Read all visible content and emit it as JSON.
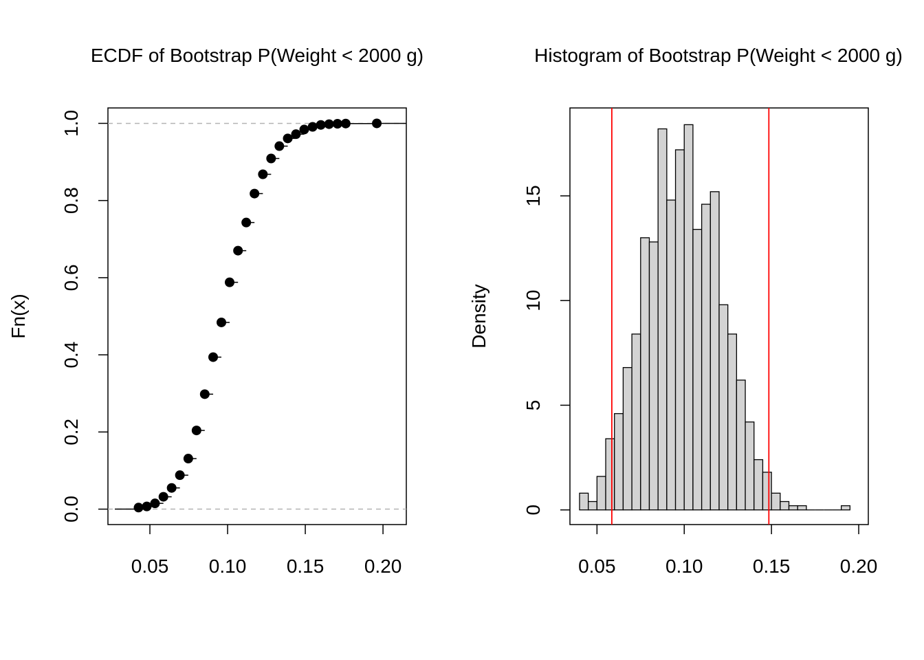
{
  "chart_data": [
    {
      "type": "line",
      "subtype": "ecdf",
      "title": "ECDF of Bootstrap P(Weight < 2000 g)",
      "xlabel": "",
      "ylabel": "Fn(x)",
      "xlim": [
        0.023,
        0.215
      ],
      "ylim": [
        -0.04,
        1.04
      ],
      "xticks": [
        "0.05",
        "0.10",
        "0.15",
        "0.20"
      ],
      "xtick_values": [
        0.05,
        0.1,
        0.15,
        0.2
      ],
      "yticks": [
        "0.0",
        "0.2",
        "0.4",
        "0.6",
        "0.8",
        "1.0"
      ],
      "ytick_values": [
        0.0,
        0.2,
        0.4,
        0.6,
        0.8,
        1.0
      ],
      "reference_lines": [
        0,
        1
      ],
      "points": [
        {
          "x": 0.0427,
          "y": 0.004
        },
        {
          "x": 0.048,
          "y": 0.007
        },
        {
          "x": 0.0533,
          "y": 0.015
        },
        {
          "x": 0.0587,
          "y": 0.032
        },
        {
          "x": 0.064,
          "y": 0.055
        },
        {
          "x": 0.0693,
          "y": 0.088
        },
        {
          "x": 0.0747,
          "y": 0.131
        },
        {
          "x": 0.08,
          "y": 0.204
        },
        {
          "x": 0.0853,
          "y": 0.298
        },
        {
          "x": 0.0907,
          "y": 0.394
        },
        {
          "x": 0.096,
          "y": 0.484
        },
        {
          "x": 0.1013,
          "y": 0.588
        },
        {
          "x": 0.1067,
          "y": 0.67
        },
        {
          "x": 0.112,
          "y": 0.743
        },
        {
          "x": 0.1173,
          "y": 0.818
        },
        {
          "x": 0.1227,
          "y": 0.868
        },
        {
          "x": 0.128,
          "y": 0.909
        },
        {
          "x": 0.1333,
          "y": 0.941
        },
        {
          "x": 0.1387,
          "y": 0.961
        },
        {
          "x": 0.144,
          "y": 0.972
        },
        {
          "x": 0.1493,
          "y": 0.984
        },
        {
          "x": 0.1547,
          "y": 0.991
        },
        {
          "x": 0.16,
          "y": 0.996
        },
        {
          "x": 0.1653,
          "y": 0.998
        },
        {
          "x": 0.1707,
          "y": 0.999
        },
        {
          "x": 0.176,
          "y": 0.9995
        },
        {
          "x": 0.196,
          "y": 1.0
        }
      ],
      "grid": false
    },
    {
      "type": "bar",
      "subtype": "histogram",
      "title": "Histogram of Bootstrap P(Weight < 2000 g)",
      "xlabel": "",
      "ylabel": "Density",
      "xlim": [
        0.0345,
        0.2055
      ],
      "ylim": [
        -0.7,
        19.2
      ],
      "xticks": [
        "0.05",
        "0.10",
        "0.15",
        "0.20"
      ],
      "xtick_values": [
        0.05,
        0.1,
        0.15,
        0.2
      ],
      "yticks": [
        "0",
        "5",
        "10",
        "15"
      ],
      "ytick_values": [
        0,
        5,
        10,
        15
      ],
      "bin_start": 0.04,
      "bin_width": 0.005,
      "densities": [
        0.8,
        0.4,
        1.6,
        3.4,
        4.6,
        6.8,
        8.4,
        13.0,
        12.8,
        18.2,
        14.8,
        17.2,
        18.4,
        13.4,
        14.6,
        15.2,
        9.8,
        8.4,
        6.2,
        4.2,
        2.4,
        1.8,
        0.8,
        0.4,
        0.2,
        0.2,
        0,
        0,
        0,
        0,
        0.2
      ],
      "bar_color": "#d3d3d3",
      "vlines": [
        {
          "x": 0.0585,
          "color": "#ff0000"
        },
        {
          "x": 0.1485,
          "color": "#ff0000"
        }
      ],
      "grid": false
    }
  ]
}
